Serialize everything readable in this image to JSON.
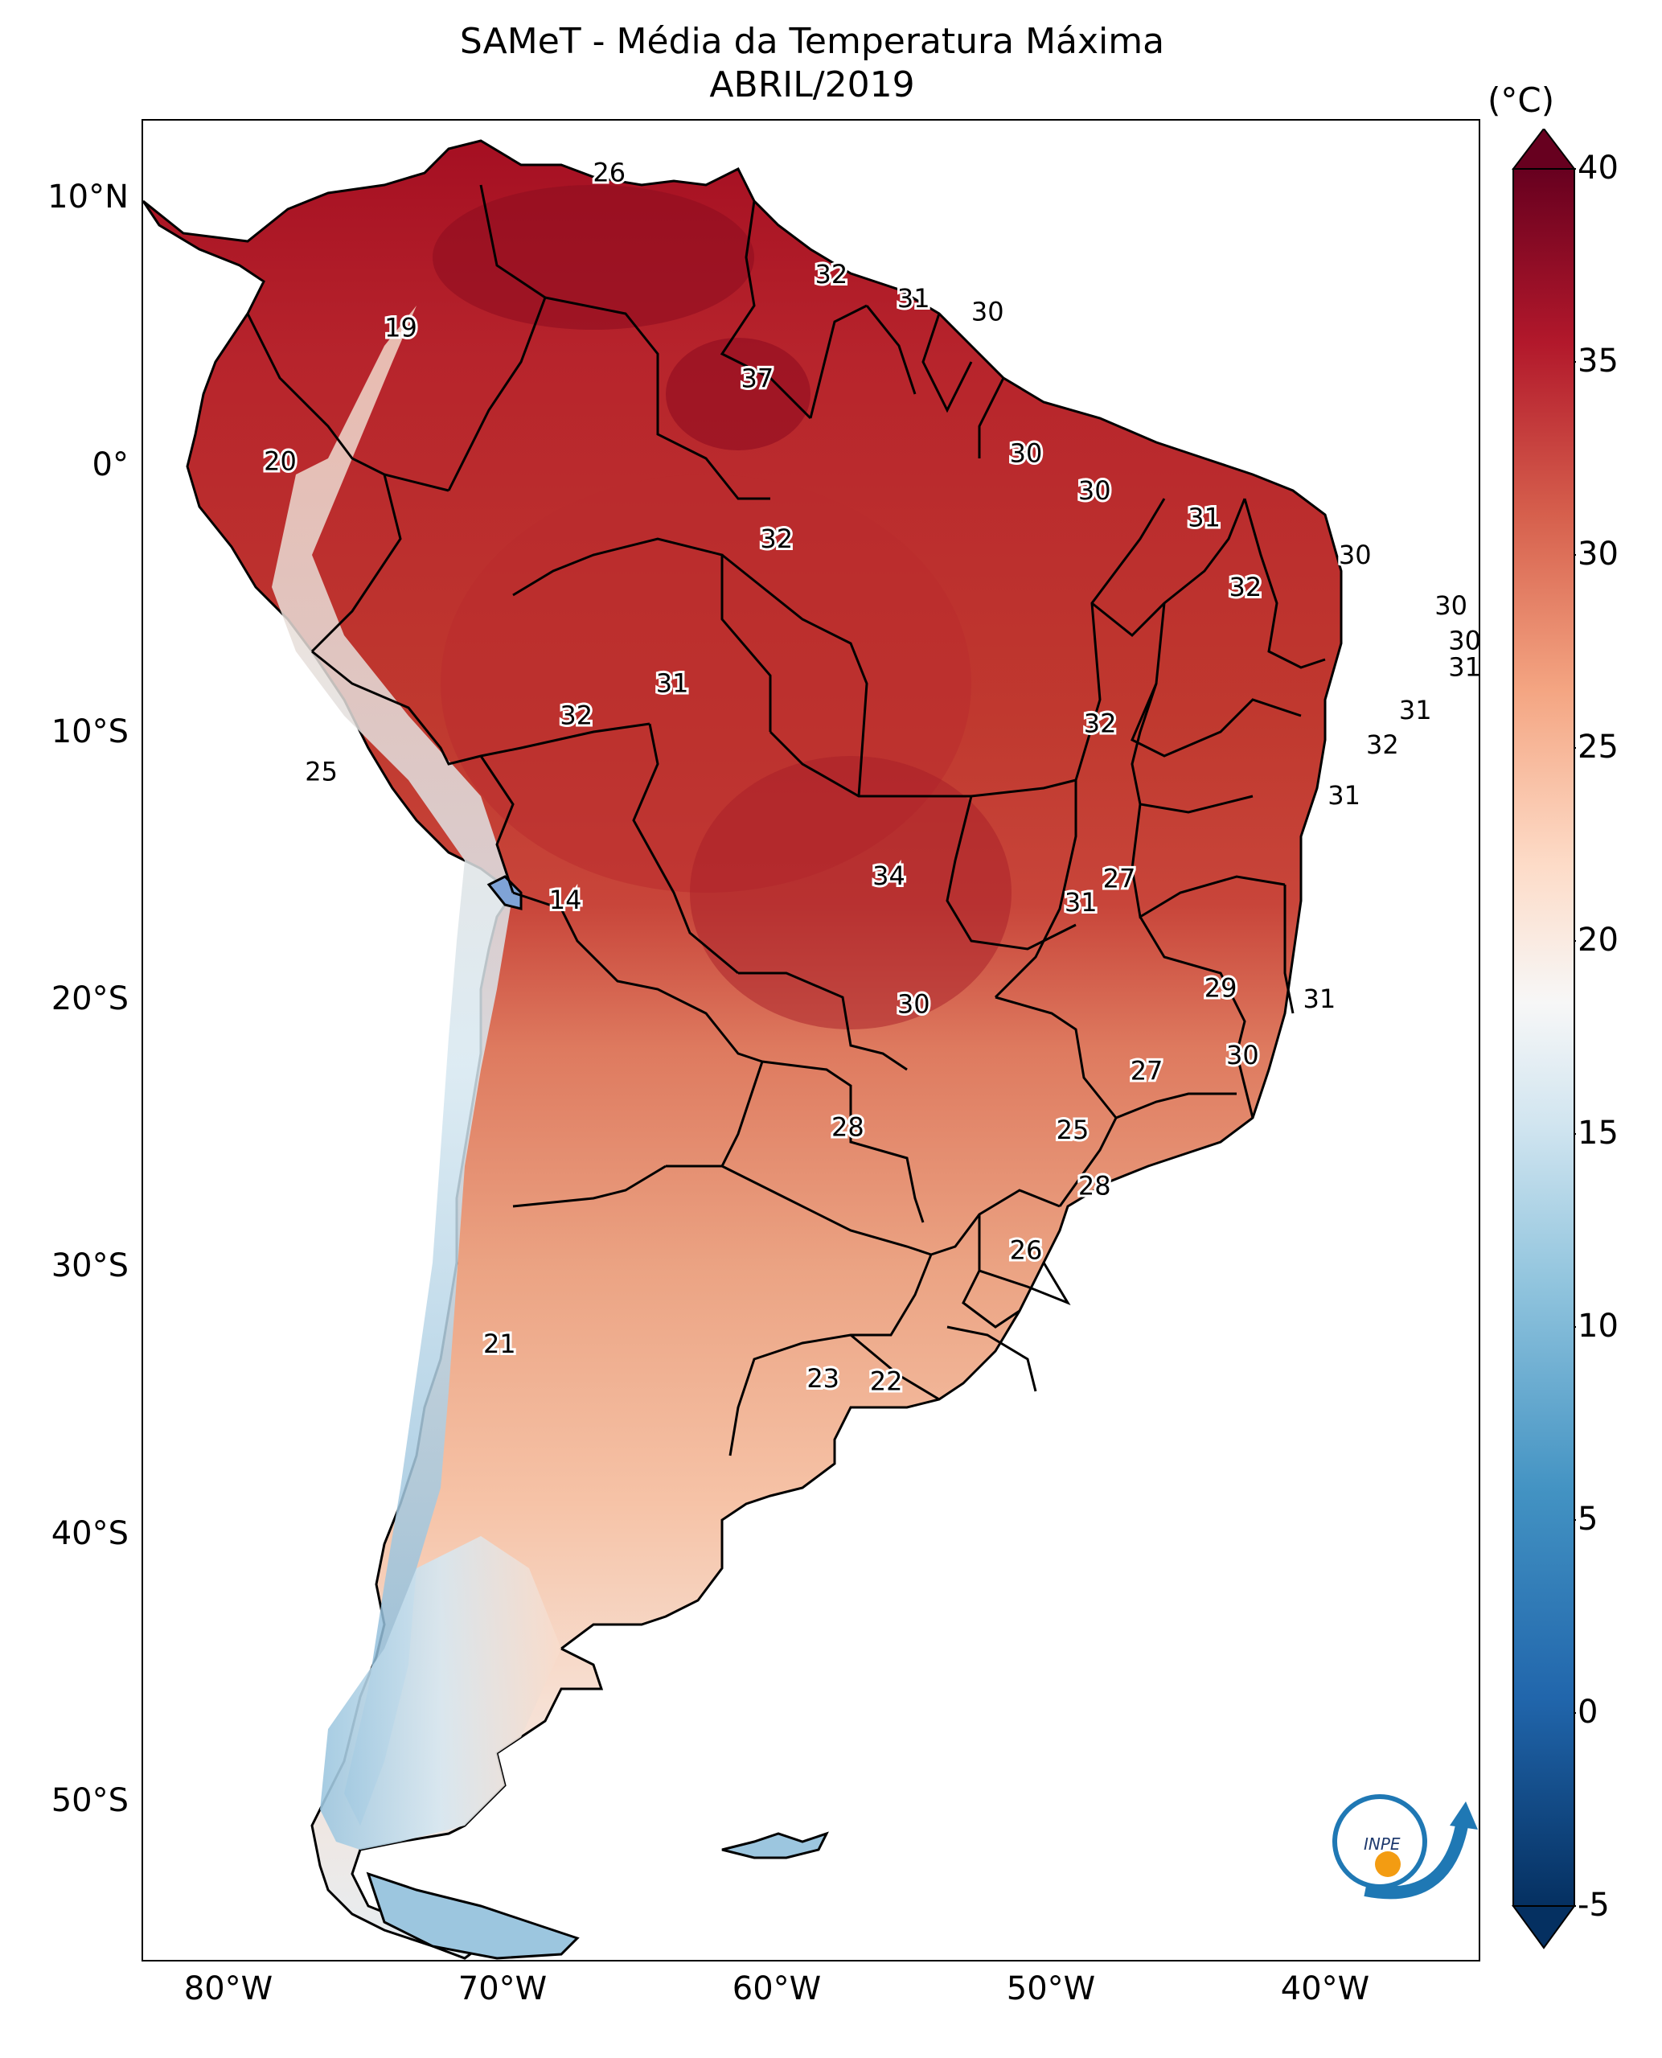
{
  "title": "SAMeT - Média da Temperatura Máxima",
  "subtitle": "ABRIL/2019",
  "colorbar": {
    "unit": "(°C)",
    "ticks": [
      "40",
      "35",
      "30",
      "25",
      "20",
      "15",
      "10",
      "5",
      "0",
      "-5"
    ],
    "range": [
      -5,
      40
    ],
    "colors": [
      "#053061",
      "#2166ac",
      "#4393c3",
      "#92c5de",
      "#d1e5f0",
      "#f7f7f7",
      "#fddbc7",
      "#f4a582",
      "#d6604d",
      "#b2182b",
      "#67001f"
    ]
  },
  "lat_labels": [
    "10°N",
    "0°",
    "10°S",
    "20°S",
    "30°S",
    "40°S",
    "50°S"
  ],
  "lon_labels": [
    "80°W",
    "70°W",
    "60°W",
    "50°W",
    "40°W"
  ],
  "map_labels": [
    {
      "text": "26",
      "lon": -66.0,
      "lat": 10.5
    },
    {
      "text": "32",
      "lon": -57.9,
      "lat": 6.7
    },
    {
      "text": "31",
      "lon": -54.9,
      "lat": 5.8
    },
    {
      "text": "30",
      "lon": -52.2,
      "lat": 5.3
    },
    {
      "text": "19",
      "lon": -73.6,
      "lat": 4.7
    },
    {
      "text": "37",
      "lon": -60.6,
      "lat": 2.8
    },
    {
      "text": "20",
      "lon": -78.0,
      "lat": -0.3
    },
    {
      "text": "30",
      "lon": -50.8,
      "lat": 0.0
    },
    {
      "text": "30",
      "lon": -48.3,
      "lat": -1.4
    },
    {
      "text": "31",
      "lon": -44.3,
      "lat": -2.4
    },
    {
      "text": "32",
      "lon": -59.9,
      "lat": -3.2
    },
    {
      "text": "30",
      "lon": -38.8,
      "lat": -3.8
    },
    {
      "text": "32",
      "lon": -42.8,
      "lat": -5.0
    },
    {
      "text": "30",
      "lon": -35.3,
      "lat": -5.7
    },
    {
      "text": "30",
      "lon": -34.8,
      "lat": -7.0
    },
    {
      "text": "31",
      "lon": -34.8,
      "lat": -8.0
    },
    {
      "text": "31",
      "lon": -63.7,
      "lat": -8.6
    },
    {
      "text": "32",
      "lon": -67.2,
      "lat": -9.8
    },
    {
      "text": "32",
      "lon": -48.1,
      "lat": -10.1
    },
    {
      "text": "31",
      "lon": -36.6,
      "lat": -9.6
    },
    {
      "text": "32",
      "lon": -37.8,
      "lat": -10.9
    },
    {
      "text": "25",
      "lon": -76.5,
      "lat": -11.9
    },
    {
      "text": "31",
      "lon": -39.2,
      "lat": -12.8
    },
    {
      "text": "34",
      "lon": -55.8,
      "lat": -15.8
    },
    {
      "text": "27",
      "lon": -47.4,
      "lat": -15.9
    },
    {
      "text": "31",
      "lon": -48.8,
      "lat": -16.8
    },
    {
      "text": "14",
      "lon": -67.6,
      "lat": -16.7
    },
    {
      "text": "30",
      "lon": -54.9,
      "lat": -20.6
    },
    {
      "text": "29",
      "lon": -43.7,
      "lat": -20.0
    },
    {
      "text": "31",
      "lon": -40.1,
      "lat": -20.4
    },
    {
      "text": "30",
      "lon": -42.9,
      "lat": -22.5
    },
    {
      "text": "27",
      "lon": -46.4,
      "lat": -23.1
    },
    {
      "text": "28",
      "lon": -57.3,
      "lat": -25.2
    },
    {
      "text": "25",
      "lon": -49.1,
      "lat": -25.3
    },
    {
      "text": "28",
      "lon": -48.3,
      "lat": -27.4
    },
    {
      "text": "26",
      "lon": -50.8,
      "lat": -29.8
    },
    {
      "text": "21",
      "lon": -70.0,
      "lat": -33.3
    },
    {
      "text": "23",
      "lon": -58.2,
      "lat": -34.6
    },
    {
      "text": "22",
      "lon": -55.9,
      "lat": -34.7
    }
  ]
}
